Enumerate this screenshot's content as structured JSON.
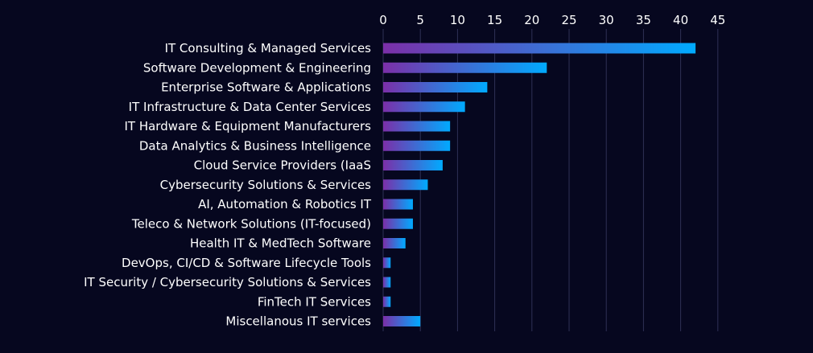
{
  "theme": {
    "background": "#06071f",
    "grid_color": "#2e3156",
    "text_color": "#ffffff",
    "bar_gradient_start": "#7b2fa8",
    "bar_gradient_end": "#00aaff"
  },
  "chart_data": {
    "type": "bar",
    "orientation": "horizontal",
    "title": "",
    "xlabel": "",
    "ylabel": "",
    "xlim": [
      0,
      45
    ],
    "x_ticks": [
      0,
      5,
      10,
      15,
      20,
      25,
      30,
      35,
      40,
      45
    ],
    "x_axis_position": "top",
    "grid": true,
    "legend": "none",
    "categories": [
      "IT Consulting & Managed Services",
      "Software Development & Engineering",
      "Enterprise Software & Applications",
      "IT Infrastructure & Data Center Services",
      "IT Hardware & Equipment Manufacturers",
      "Data Analytics & Business Intelligence",
      "Cloud Service Providers (IaaS",
      "Cybersecurity Solutions & Services",
      "AI, Automation & Robotics IT",
      "Teleco & Network Solutions (IT-focused)",
      "Health IT & MedTech Software",
      "DevOps, CI/CD & Software Lifecycle Tools",
      "IT Security / Cybersecurity Solutions & Services",
      "FinTech IT Services",
      "Miscellanous IT services"
    ],
    "values": [
      42,
      22,
      14,
      11,
      9,
      9,
      8,
      6,
      4,
      4,
      3,
      1,
      1,
      1,
      5
    ]
  }
}
